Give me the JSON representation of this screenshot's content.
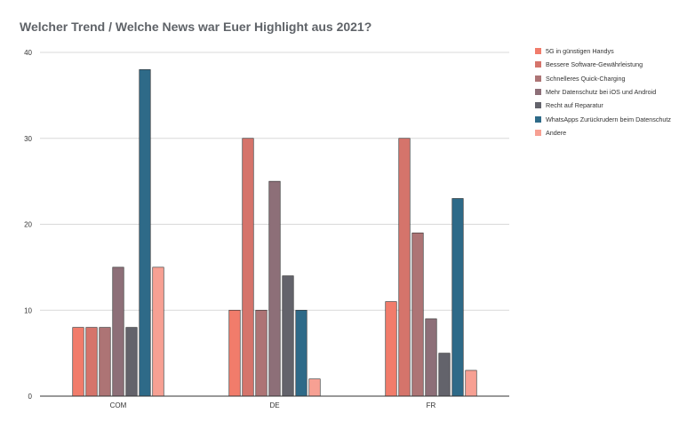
{
  "chart_data": {
    "type": "bar",
    "title": "Welcher Trend / Welche News war Euer Highlight aus 2021?",
    "categories": [
      "COM",
      "DE",
      "FR"
    ],
    "ylim": [
      0,
      40
    ],
    "yticks": [
      0,
      10,
      20,
      30,
      40
    ],
    "grid": true,
    "legend_position": "right",
    "series": [
      {
        "name": "5G in günstigen Handys",
        "color": "#f17c6b",
        "values": [
          8,
          10,
          11
        ]
      },
      {
        "name": "Bessere Software-Gewährleistung",
        "color": "#d5746b",
        "values": [
          8,
          30,
          30
        ]
      },
      {
        "name": "Schnelleres Quick-Charging",
        "color": "#ad7475",
        "values": [
          8,
          10,
          19
        ]
      },
      {
        "name": "Mehr Datenschutz bei iOS und Android",
        "color": "#8d6f78",
        "values": [
          15,
          25,
          9
        ]
      },
      {
        "name": "Recht auf Reparatur",
        "color": "#63636b",
        "values": [
          8,
          14,
          5
        ]
      },
      {
        "name": "WhatsApps Zurückrudern beim Datenschutz",
        "color": "#2e6a88",
        "values": [
          38,
          10,
          23
        ]
      },
      {
        "name": "Andere",
        "color": "#f7a093",
        "values": [
          15,
          2,
          3
        ]
      }
    ]
  }
}
